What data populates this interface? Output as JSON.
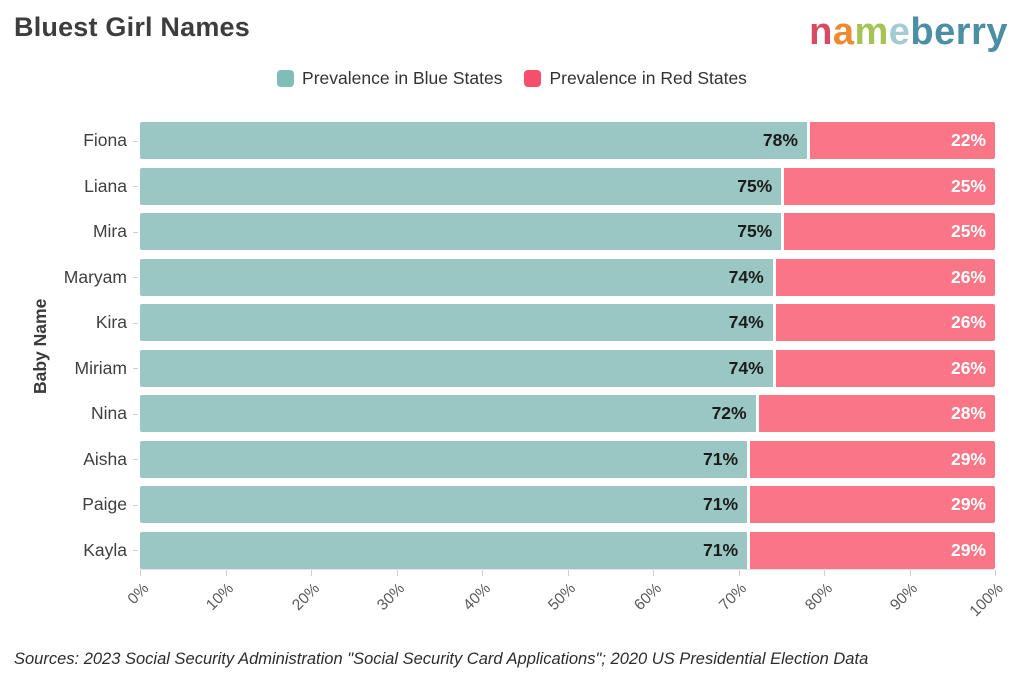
{
  "header": {
    "title": "Bluest Girl Names",
    "logo": {
      "text": "nameberry",
      "letters": [
        {
          "ch": "n",
          "color": "#d84a64"
        },
        {
          "ch": "a",
          "color": "#ee8a31"
        },
        {
          "ch": "m",
          "color": "#a6c356"
        },
        {
          "ch": "e",
          "color": "#a2cbd2"
        },
        {
          "ch": "b",
          "color": "#4b8fa5"
        },
        {
          "ch": "e",
          "color": "#4b8fa5"
        },
        {
          "ch": "r",
          "color": "#4b8fa5"
        },
        {
          "ch": "r",
          "color": "#4b8fa5"
        },
        {
          "ch": "y",
          "color": "#4b8fa5"
        }
      ]
    }
  },
  "legend": {
    "items": [
      {
        "label": "Prevalence in Blue States",
        "color": "#7fbdb7"
      },
      {
        "label": "Prevalence in Red States",
        "color": "#f4506b"
      }
    ]
  },
  "chart_data": {
    "type": "bar",
    "orientation": "horizontal",
    "stacked": true,
    "title": "Bluest Girl Names",
    "categories": [
      "Fiona",
      "Liana",
      "Mira",
      "Maryam",
      "Kira",
      "Miriam",
      "Nina",
      "Aisha",
      "Paige",
      "Kayla"
    ],
    "series": [
      {
        "name": "Prevalence in Blue States",
        "color": "#9ac7c3",
        "values": [
          78,
          75,
          75,
          74,
          74,
          74,
          72,
          71,
          71,
          71
        ]
      },
      {
        "name": "Prevalence in Red States",
        "color": "#fa7586",
        "values": [
          22,
          25,
          25,
          26,
          26,
          26,
          28,
          29,
          29,
          29
        ]
      }
    ],
    "xlabel": "",
    "ylabel": "Baby Name",
    "xlim": [
      0,
      100
    ],
    "x_ticks": [
      "0%",
      "10%",
      "20%",
      "30%",
      "40%",
      "50%",
      "60%",
      "70%",
      "80%",
      "90%",
      "100%"
    ],
    "value_suffix": "%",
    "value_label_colors": {
      "on_blue": "#1b1b1b",
      "on_red": "#ffffff"
    },
    "grid": false,
    "legend_position": "top"
  },
  "footer": {
    "source": "Sources: 2023 Social Security Administration \"Social Security Card Applications\"; 2020 US Presidential Election Data"
  }
}
